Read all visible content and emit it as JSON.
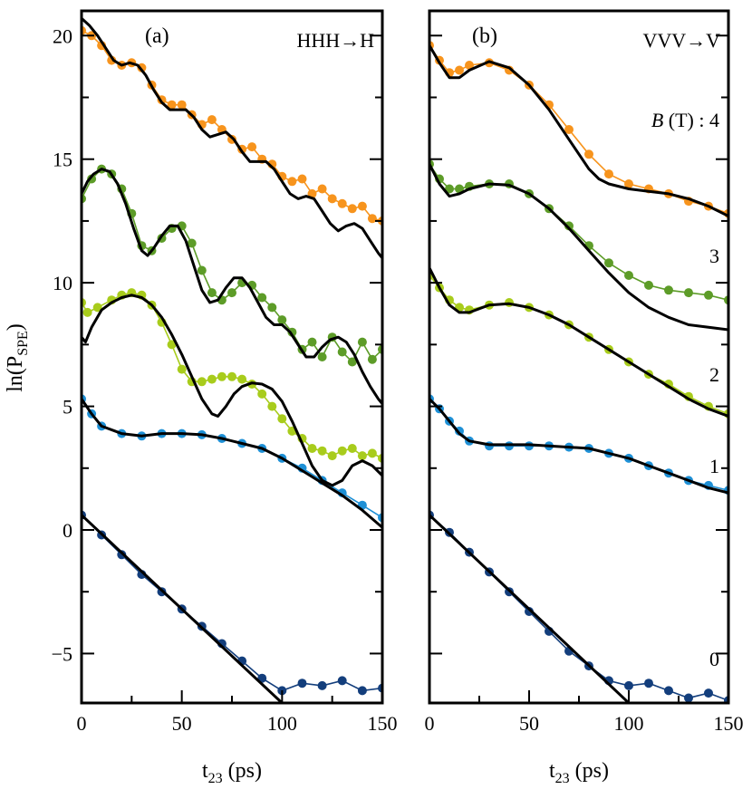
{
  "figure": {
    "y_axis_label_main": "ln(P",
    "y_axis_label_sub": "SPE",
    "y_axis_label_close": ")",
    "x_axis_label_main": "t",
    "x_axis_label_sub": "23",
    "x_axis_label_unit": " (ps)",
    "colors": {
      "B0": "#133e7c",
      "B1": "#1e90d6",
      "B2": "#a8cc1c",
      "B3": "#5d9c28",
      "B4": "#f7941d",
      "fit": "#000000"
    }
  },
  "chart_data": [
    {
      "type": "scatter",
      "panel_label": "(a)",
      "corner_label": "HHH→H",
      "xlim": [
        0,
        150
      ],
      "ylim": [
        -7,
        21
      ],
      "xticks": [
        0,
        50,
        100,
        150
      ],
      "yticks": [
        -5,
        0,
        5,
        10,
        15,
        20
      ],
      "xtick_labels": [
        "0",
        "50",
        "100",
        "150"
      ],
      "ytick_labels": [
        "−5",
        "0",
        "5",
        "10",
        "15",
        "20"
      ],
      "series": [
        {
          "key": "B0",
          "x": [
            0,
            10,
            20,
            30,
            40,
            50,
            60,
            70,
            80,
            90,
            100,
            110,
            120,
            130,
            140,
            150
          ],
          "y": [
            0.6,
            -0.2,
            -1.0,
            -1.8,
            -2.5,
            -3.2,
            -3.9,
            -4.6,
            -5.3,
            -6.0,
            -6.5,
            -6.2,
            -6.3,
            -6.1,
            -6.5,
            -6.4
          ],
          "fit_x": [
            0,
            100,
            101
          ],
          "fit_y": [
            0.6,
            -7.0,
            -7.1
          ]
        },
        {
          "key": "B1",
          "x": [
            0,
            5,
            10,
            20,
            30,
            40,
            50,
            60,
            70,
            80,
            90,
            100,
            110,
            120,
            130,
            140,
            150
          ],
          "y": [
            5.3,
            4.7,
            4.2,
            3.9,
            3.8,
            3.9,
            3.9,
            3.85,
            3.7,
            3.5,
            3.3,
            2.9,
            2.5,
            2.0,
            1.5,
            1.0,
            0.5
          ],
          "fit_x": [
            0,
            5,
            10,
            20,
            30,
            40,
            50,
            60,
            70,
            80,
            90,
            100,
            110,
            120,
            130,
            140,
            150
          ],
          "fit_y": [
            5.3,
            4.7,
            4.2,
            3.9,
            3.8,
            3.9,
            3.9,
            3.85,
            3.7,
            3.5,
            3.3,
            2.9,
            2.4,
            1.9,
            1.4,
            0.8,
            0.1
          ]
        },
        {
          "key": "B2",
          "x": [
            0,
            3,
            8,
            15,
            20,
            25,
            30,
            35,
            40,
            45,
            50,
            55,
            60,
            65,
            70,
            75,
            80,
            85,
            90,
            95,
            100,
            105,
            110,
            115,
            120,
            125,
            130,
            135,
            140,
            145,
            150
          ],
          "y": [
            9.2,
            8.8,
            9.0,
            9.3,
            9.5,
            9.6,
            9.5,
            9.1,
            8.4,
            7.5,
            6.5,
            6.0,
            6.0,
            6.1,
            6.2,
            6.2,
            6.1,
            5.9,
            5.5,
            5.0,
            4.5,
            4.0,
            3.7,
            3.3,
            3.2,
            3.0,
            3.2,
            3.3,
            3.0,
            3.1,
            2.9
          ],
          "fit_x": [
            0,
            2,
            5,
            10,
            15,
            20,
            25,
            30,
            35,
            40,
            45,
            50,
            55,
            60,
            65,
            68,
            72,
            76,
            80,
            85,
            90,
            95,
            100,
            105,
            110,
            115,
            120,
            125,
            130,
            135,
            140,
            145,
            150
          ],
          "fit_y": [
            7.8,
            7.6,
            8.2,
            8.9,
            9.2,
            9.4,
            9.5,
            9.4,
            9.1,
            8.6,
            7.9,
            7.1,
            6.2,
            5.3,
            4.7,
            4.6,
            5.0,
            5.5,
            5.8,
            5.95,
            5.9,
            5.7,
            5.2,
            4.4,
            3.5,
            2.6,
            2.0,
            1.8,
            2.0,
            2.6,
            2.8,
            2.6,
            2.2
          ]
        },
        {
          "key": "B3",
          "x": [
            0,
            5,
            10,
            15,
            20,
            25,
            30,
            35,
            40,
            45,
            50,
            55,
            60,
            65,
            70,
            75,
            80,
            85,
            90,
            95,
            100,
            105,
            110,
            115,
            120,
            125,
            130,
            135,
            140,
            145,
            150
          ],
          "y": [
            13.4,
            14.2,
            14.6,
            14.4,
            13.8,
            12.8,
            11.5,
            11.3,
            11.8,
            12.2,
            12.3,
            11.6,
            10.5,
            9.6,
            9.3,
            9.6,
            10.0,
            9.9,
            9.4,
            9.0,
            8.5,
            8.0,
            7.3,
            7.6,
            7.0,
            7.8,
            7.2,
            6.8,
            7.6,
            6.9,
            7.3
          ],
          "fit_x": [
            0,
            3,
            6,
            10,
            14,
            18,
            22,
            26,
            30,
            33,
            36,
            40,
            44,
            48,
            52,
            56,
            60,
            64,
            68,
            72,
            76,
            80,
            84,
            88,
            92,
            96,
            100,
            104,
            108,
            112,
            116,
            120,
            124,
            128,
            132,
            136,
            140,
            144,
            148,
            150
          ],
          "fit_y": [
            13.6,
            14.1,
            14.4,
            14.6,
            14.5,
            14.0,
            13.2,
            12.2,
            11.3,
            11.1,
            11.4,
            11.9,
            12.3,
            12.3,
            11.7,
            10.7,
            9.7,
            9.2,
            9.3,
            9.8,
            10.2,
            10.2,
            9.8,
            9.2,
            8.6,
            8.3,
            8.3,
            8.0,
            7.5,
            7.0,
            7.0,
            7.4,
            7.7,
            7.8,
            7.6,
            7.1,
            6.4,
            5.8,
            5.3,
            5.1
          ]
        },
        {
          "key": "B4",
          "x": [
            0,
            5,
            10,
            15,
            20,
            25,
            30,
            35,
            40,
            45,
            50,
            55,
            60,
            65,
            70,
            75,
            80,
            85,
            90,
            95,
            100,
            105,
            110,
            115,
            120,
            125,
            130,
            135,
            140,
            145,
            150
          ],
          "y": [
            20.2,
            20.0,
            19.6,
            19.0,
            18.8,
            18.9,
            18.7,
            18.0,
            17.4,
            17.2,
            17.2,
            16.8,
            16.4,
            16.6,
            16.2,
            15.8,
            15.4,
            15.5,
            15.0,
            14.8,
            14.3,
            14.1,
            14.2,
            13.6,
            13.8,
            13.4,
            13.2,
            13.0,
            13.1,
            12.6,
            12.5
          ],
          "fit_x": [
            0,
            4,
            8,
            12,
            16,
            20,
            24,
            28,
            32,
            36,
            40,
            44,
            48,
            52,
            56,
            60,
            64,
            68,
            72,
            76,
            80,
            84,
            88,
            92,
            96,
            100,
            104,
            108,
            112,
            116,
            120,
            124,
            128,
            132,
            136,
            140,
            144,
            148,
            150
          ],
          "fit_y": [
            20.7,
            20.4,
            20.0,
            19.5,
            19.0,
            18.8,
            18.9,
            18.8,
            18.4,
            17.8,
            17.3,
            17.0,
            17.0,
            17.0,
            16.7,
            16.2,
            15.9,
            16.0,
            16.1,
            15.8,
            15.3,
            14.9,
            14.9,
            14.9,
            14.6,
            14.1,
            13.6,
            13.4,
            13.5,
            13.4,
            12.9,
            12.4,
            12.1,
            12.3,
            12.4,
            12.2,
            11.7,
            11.2,
            11.0
          ]
        }
      ]
    },
    {
      "type": "scatter",
      "panel_label": "(b)",
      "corner_label": "VVV→V",
      "b_field_labels": [
        {
          "key": "B4",
          "prefix": "B",
          "text": " (T) : 4",
          "y": 16.6
        },
        {
          "key": "B3",
          "text": "3",
          "y": 11.1
        },
        {
          "key": "B2",
          "text": "2",
          "y": 6.3
        },
        {
          "key": "B1",
          "text": "1",
          "y": 2.6
        },
        {
          "key": "B0",
          "text": "0",
          "y": -5.2
        }
      ],
      "xlim": [
        0,
        150
      ],
      "ylim": [
        -7,
        21
      ],
      "xticks": [
        0,
        50,
        100,
        150
      ],
      "yticks": [
        -5,
        0,
        5,
        10,
        15,
        20
      ],
      "xtick_labels": [
        "0",
        "50",
        "100",
        "150"
      ],
      "series": [
        {
          "key": "B0",
          "x": [
            0,
            10,
            20,
            30,
            40,
            50,
            60,
            70,
            80,
            90,
            100,
            110,
            120,
            130,
            140,
            150
          ],
          "y": [
            0.6,
            -0.1,
            -0.9,
            -1.7,
            -2.5,
            -3.3,
            -4.1,
            -4.9,
            -5.5,
            -6.1,
            -6.3,
            -6.2,
            -6.5,
            -6.8,
            -6.6,
            -6.9
          ],
          "fit_x": [
            0,
            100,
            101
          ],
          "fit_y": [
            0.6,
            -7.0,
            -7.1
          ]
        },
        {
          "key": "B1",
          "x": [
            0,
            5,
            10,
            15,
            20,
            30,
            40,
            50,
            60,
            70,
            80,
            90,
            100,
            110,
            120,
            130,
            140,
            150
          ],
          "y": [
            5.3,
            4.9,
            4.4,
            4.0,
            3.6,
            3.4,
            3.4,
            3.4,
            3.4,
            3.35,
            3.3,
            3.1,
            2.9,
            2.6,
            2.3,
            2.0,
            1.8,
            1.6
          ],
          "fit_x": [
            0,
            5,
            10,
            15,
            20,
            30,
            40,
            50,
            60,
            70,
            80,
            90,
            100,
            110,
            120,
            130,
            140,
            150
          ],
          "fit_y": [
            5.3,
            4.9,
            4.4,
            3.9,
            3.6,
            3.45,
            3.45,
            3.45,
            3.4,
            3.35,
            3.3,
            3.1,
            2.9,
            2.6,
            2.3,
            2.0,
            1.7,
            1.5
          ]
        },
        {
          "key": "B2",
          "x": [
            0,
            5,
            10,
            15,
            20,
            30,
            40,
            50,
            60,
            70,
            80,
            90,
            100,
            110,
            120,
            130,
            140,
            150
          ],
          "y": [
            10.3,
            9.8,
            9.3,
            9.0,
            8.9,
            9.1,
            9.2,
            9.0,
            8.7,
            8.3,
            7.8,
            7.3,
            6.8,
            6.3,
            5.9,
            5.4,
            5.0,
            4.7
          ],
          "fit_x": [
            0,
            5,
            10,
            15,
            20,
            30,
            40,
            50,
            60,
            70,
            80,
            90,
            100,
            110,
            120,
            130,
            140,
            150
          ],
          "fit_y": [
            10.6,
            9.8,
            9.1,
            8.8,
            8.8,
            9.1,
            9.15,
            9.0,
            8.7,
            8.3,
            7.8,
            7.3,
            6.8,
            6.3,
            5.8,
            5.3,
            4.9,
            4.6
          ]
        },
        {
          "key": "B3",
          "x": [
            0,
            5,
            10,
            15,
            20,
            30,
            40,
            50,
            60,
            70,
            80,
            90,
            100,
            110,
            120,
            130,
            140,
            150
          ],
          "y": [
            14.8,
            14.2,
            13.8,
            13.8,
            13.9,
            14.0,
            14.0,
            13.6,
            13.0,
            12.3,
            11.5,
            10.8,
            10.3,
            9.9,
            9.7,
            9.6,
            9.5,
            9.3
          ],
          "fit_x": [
            0,
            5,
            10,
            15,
            20,
            30,
            40,
            50,
            60,
            70,
            80,
            90,
            100,
            110,
            120,
            130,
            140,
            150
          ],
          "fit_y": [
            14.8,
            14.0,
            13.5,
            13.6,
            13.8,
            14.0,
            13.95,
            13.6,
            13.0,
            12.2,
            11.3,
            10.4,
            9.6,
            9.0,
            8.6,
            8.3,
            8.2,
            8.1
          ]
        },
        {
          "key": "B4",
          "x": [
            0,
            5,
            10,
            15,
            20,
            30,
            40,
            50,
            60,
            70,
            80,
            90,
            100,
            110,
            120,
            130,
            140,
            150
          ],
          "y": [
            19.6,
            19.0,
            18.5,
            18.6,
            18.8,
            18.9,
            18.6,
            18.0,
            17.2,
            16.2,
            15.2,
            14.4,
            14.0,
            13.8,
            13.6,
            13.3,
            13.1,
            12.8
          ],
          "fit_x": [
            0,
            5,
            10,
            15,
            20,
            30,
            40,
            50,
            60,
            70,
            80,
            85,
            90,
            100,
            110,
            120,
            130,
            140,
            150
          ],
          "fit_y": [
            19.6,
            18.9,
            18.3,
            18.3,
            18.6,
            18.95,
            18.7,
            18.0,
            17.0,
            15.8,
            14.6,
            14.2,
            14.0,
            13.8,
            13.7,
            13.6,
            13.4,
            13.1,
            12.7
          ]
        }
      ]
    }
  ]
}
